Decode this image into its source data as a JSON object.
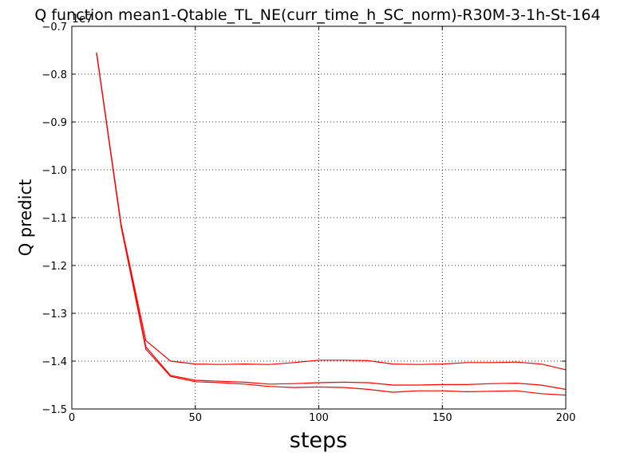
{
  "chart_data": {
    "type": "line",
    "title": "Q function mean1-Qtable_TL_NE(curr_time_h_SC_norm)-R30M-3-1h-St-164",
    "xlabel": "steps",
    "ylabel": "Q predict",
    "y_offset_label": "1e7",
    "xlim": [
      0,
      200
    ],
    "ylim": [
      -1.5,
      -0.7
    ],
    "xticks": [
      0,
      50,
      100,
      150,
      200
    ],
    "yticks": [
      -1.5,
      -1.4,
      -1.3,
      -1.2,
      -1.1,
      -1.0,
      -0.9,
      -0.8,
      -0.7
    ],
    "xtick_labels": [
      "0",
      "50",
      "100",
      "150",
      "200"
    ],
    "ytick_labels": [
      "−1.5",
      "−1.4",
      "−1.3",
      "−1.2",
      "−1.1",
      "−1.0",
      "−0.9",
      "−0.8",
      "−0.7"
    ],
    "grid": true,
    "series_color": "#ff0000",
    "series": [
      {
        "x": [
          10,
          20,
          30,
          40,
          50,
          60,
          70,
          80,
          90,
          100,
          110,
          120,
          130,
          140,
          150,
          160,
          170,
          180,
          190,
          200
        ],
        "values": [
          -0.755,
          -1.115,
          -1.357,
          -1.4,
          -1.406,
          -1.407,
          -1.406,
          -1.407,
          -1.403,
          -1.398,
          -1.398,
          -1.399,
          -1.406,
          -1.407,
          -1.406,
          -1.403,
          -1.403,
          -1.402,
          -1.406,
          -1.418
        ]
      },
      {
        "x": [
          10,
          20,
          30,
          40,
          50,
          60,
          70,
          80,
          90,
          100,
          110,
          120,
          130,
          140,
          150,
          160,
          170,
          180,
          190,
          200
        ],
        "values": [
          -0.755,
          -1.118,
          -1.37,
          -1.43,
          -1.44,
          -1.442,
          -1.444,
          -1.448,
          -1.447,
          -1.445,
          -1.444,
          -1.445,
          -1.45,
          -1.45,
          -1.449,
          -1.449,
          -1.447,
          -1.446,
          -1.45,
          -1.459
        ]
      },
      {
        "x": [
          10,
          20,
          30,
          40,
          50,
          60,
          70,
          80,
          90,
          100,
          110,
          120,
          130,
          140,
          150,
          160,
          170,
          180,
          190,
          200
        ],
        "values": [
          -0.755,
          -1.12,
          -1.375,
          -1.432,
          -1.443,
          -1.445,
          -1.448,
          -1.453,
          -1.455,
          -1.454,
          -1.455,
          -1.459,
          -1.465,
          -1.462,
          -1.462,
          -1.464,
          -1.463,
          -1.462,
          -1.468,
          -1.471
        ]
      }
    ]
  }
}
